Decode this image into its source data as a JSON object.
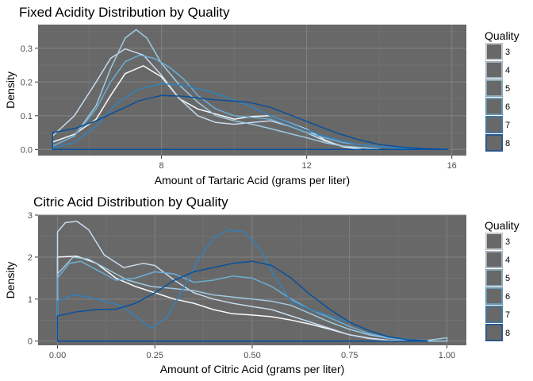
{
  "chart_data": [
    {
      "type": "line",
      "subtype": "density",
      "title": "Fixed Acidity Distribution by Quality",
      "xlabel": "Amount of Tartaric Acid (grams per liter)",
      "ylabel": "Density",
      "xlim": [
        4.6,
        16.4
      ],
      "ylim": [
        -0.018,
        0.37
      ],
      "xticks": [
        8,
        12,
        16
      ],
      "yticks": [
        0.0,
        0.1,
        0.2,
        0.3
      ],
      "ytick_labels": [
        "0.0",
        "0.1",
        "0.2",
        "0.3"
      ],
      "grid": true,
      "legend": {
        "title": "Quality",
        "position": "right"
      },
      "series": [
        {
          "name": "3",
          "color": "#f7fbff",
          "points": [
            [
              5.0,
              0.022
            ],
            [
              5.6,
              0.045
            ],
            [
              6.2,
              0.09
            ],
            [
              6.6,
              0.16
            ],
            [
              7.0,
              0.225
            ],
            [
              7.5,
              0.248
            ],
            [
              8.0,
              0.215
            ],
            [
              8.5,
              0.15
            ],
            [
              9.0,
              0.12
            ],
            [
              9.5,
              0.105
            ],
            [
              10.0,
              0.09
            ],
            [
              10.5,
              0.098
            ],
            [
              11.0,
              0.1
            ],
            [
              11.5,
              0.08
            ],
            [
              12.0,
              0.06
            ],
            [
              12.5,
              0.028
            ],
            [
              13.0,
              0.008
            ],
            [
              13.5,
              0.001
            ]
          ]
        },
        {
          "name": "4",
          "color": "#c6dbef",
          "points": [
            [
              5.0,
              0.04
            ],
            [
              5.6,
              0.1
            ],
            [
              6.2,
              0.2
            ],
            [
              6.6,
              0.27
            ],
            [
              7.0,
              0.298
            ],
            [
              7.5,
              0.28
            ],
            [
              8.0,
              0.22
            ],
            [
              8.5,
              0.15
            ],
            [
              9.0,
              0.1
            ],
            [
              9.5,
              0.08
            ],
            [
              10.0,
              0.075
            ],
            [
              10.5,
              0.08
            ],
            [
              11.0,
              0.085
            ],
            [
              11.5,
              0.07
            ],
            [
              12.0,
              0.05
            ],
            [
              12.5,
              0.025
            ],
            [
              13.0,
              0.01
            ],
            [
              14.0,
              0.001
            ]
          ]
        },
        {
          "name": "5",
          "color": "#9ecae1",
          "points": [
            [
              5.0,
              0.01
            ],
            [
              5.6,
              0.04
            ],
            [
              6.2,
              0.13
            ],
            [
              6.6,
              0.24
            ],
            [
              7.0,
              0.33
            ],
            [
              7.3,
              0.355
            ],
            [
              7.6,
              0.33
            ],
            [
              8.0,
              0.255
            ],
            [
              8.5,
              0.19
            ],
            [
              9.0,
              0.14
            ],
            [
              9.5,
              0.1
            ],
            [
              10.0,
              0.085
            ],
            [
              10.5,
              0.075
            ],
            [
              11.0,
              0.062
            ],
            [
              11.5,
              0.048
            ],
            [
              12.0,
              0.035
            ],
            [
              12.5,
              0.02
            ],
            [
              13.0,
              0.01
            ],
            [
              14.0,
              0.002
            ]
          ]
        },
        {
          "name": "6",
          "color": "#6baed6",
          "points": [
            [
              5.0,
              0.01
            ],
            [
              5.6,
              0.04
            ],
            [
              6.2,
              0.12
            ],
            [
              6.6,
              0.2
            ],
            [
              7.0,
              0.26
            ],
            [
              7.4,
              0.28
            ],
            [
              7.8,
              0.27
            ],
            [
              8.2,
              0.245
            ],
            [
              8.6,
              0.21
            ],
            [
              9.0,
              0.16
            ],
            [
              9.5,
              0.12
            ],
            [
              10.0,
              0.1
            ],
            [
              10.5,
              0.095
            ],
            [
              11.0,
              0.09
            ],
            [
              11.5,
              0.07
            ],
            [
              12.0,
              0.05
            ],
            [
              12.5,
              0.035
            ],
            [
              13.0,
              0.02
            ],
            [
              14.0,
              0.008
            ],
            [
              15.0,
              0.002
            ]
          ]
        },
        {
          "name": "7",
          "color": "#3182bd",
          "points": [
            [
              5.0,
              0.005
            ],
            [
              5.6,
              0.02
            ],
            [
              6.2,
              0.07
            ],
            [
              6.8,
              0.14
            ],
            [
              7.4,
              0.18
            ],
            [
              8.0,
              0.195
            ],
            [
              8.6,
              0.19
            ],
            [
              9.2,
              0.175
            ],
            [
              9.8,
              0.155
            ],
            [
              10.4,
              0.13
            ],
            [
              11.0,
              0.1
            ],
            [
              11.6,
              0.075
            ],
            [
              12.2,
              0.05
            ],
            [
              12.8,
              0.03
            ],
            [
              13.4,
              0.015
            ],
            [
              14.0,
              0.008
            ],
            [
              15.0,
              0.003
            ],
            [
              15.8,
              0.001
            ]
          ]
        },
        {
          "name": "8",
          "color": "#08519c",
          "points": [
            [
              5.0,
              0.05
            ],
            [
              5.6,
              0.062
            ],
            [
              6.2,
              0.085
            ],
            [
              6.8,
              0.115
            ],
            [
              7.4,
              0.145
            ],
            [
              8.0,
              0.16
            ],
            [
              8.6,
              0.158
            ],
            [
              9.2,
              0.15
            ],
            [
              9.8,
              0.145
            ],
            [
              10.4,
              0.14
            ],
            [
              11.0,
              0.125
            ],
            [
              11.6,
              0.1
            ],
            [
              12.2,
              0.075
            ],
            [
              12.8,
              0.05
            ],
            [
              13.4,
              0.03
            ],
            [
              14.0,
              0.015
            ],
            [
              14.6,
              0.007
            ],
            [
              15.2,
              0.003
            ],
            [
              15.9,
              0.0
            ]
          ]
        }
      ]
    },
    {
      "type": "line",
      "subtype": "density",
      "title": "Citric Acid Distribution by Quality",
      "xlabel": "Amount of Citric Acid (grams per liter)",
      "ylabel": "Density",
      "xlim": [
        -0.05,
        1.05
      ],
      "ylim": [
        -0.1,
        3.0
      ],
      "xticks": [
        0.0,
        0.25,
        0.5,
        0.75,
        1.0
      ],
      "xtick_labels": [
        "0.00",
        "0.25",
        "0.50",
        "0.75",
        "1.00"
      ],
      "yticks": [
        0,
        1,
        2,
        3
      ],
      "ytick_labels": [
        "0",
        "1",
        "2",
        "3"
      ],
      "grid": true,
      "legend": {
        "title": "Quality",
        "position": "right"
      },
      "series": [
        {
          "name": "3",
          "color": "#f7fbff",
          "points": [
            [
              0.0,
              2.0
            ],
            [
              0.05,
              2.02
            ],
            [
              0.1,
              1.85
            ],
            [
              0.15,
              1.5
            ],
            [
              0.2,
              1.3
            ],
            [
              0.25,
              1.15
            ],
            [
              0.3,
              1.0
            ],
            [
              0.35,
              0.9
            ],
            [
              0.4,
              0.75
            ],
            [
              0.45,
              0.65
            ],
            [
              0.5,
              0.62
            ],
            [
              0.55,
              0.58
            ],
            [
              0.6,
              0.5
            ],
            [
              0.65,
              0.4
            ],
            [
              0.7,
              0.28
            ],
            [
              0.75,
              0.15
            ],
            [
              0.8,
              0.07
            ],
            [
              0.85,
              0.02
            ],
            [
              0.9,
              0.005
            ]
          ]
        },
        {
          "name": "4",
          "color": "#c6dbef",
          "points": [
            [
              0.0,
              2.6
            ],
            [
              0.02,
              2.82
            ],
            [
              0.05,
              2.85
            ],
            [
              0.08,
              2.65
            ],
            [
              0.12,
              2.05
            ],
            [
              0.17,
              1.75
            ],
            [
              0.22,
              1.85
            ],
            [
              0.25,
              1.8
            ],
            [
              0.3,
              1.45
            ],
            [
              0.35,
              1.15
            ],
            [
              0.4,
              1.0
            ],
            [
              0.45,
              0.9
            ],
            [
              0.5,
              0.82
            ],
            [
              0.55,
              0.75
            ],
            [
              0.6,
              0.6
            ],
            [
              0.65,
              0.45
            ],
            [
              0.7,
              0.3
            ],
            [
              0.75,
              0.15
            ],
            [
              0.8,
              0.06
            ],
            [
              0.85,
              0.02
            ],
            [
              0.9,
              0.005
            ]
          ]
        },
        {
          "name": "5",
          "color": "#9ecae1",
          "points": [
            [
              0.0,
              1.6
            ],
            [
              0.04,
              2.0
            ],
            [
              0.08,
              1.95
            ],
            [
              0.12,
              1.75
            ],
            [
              0.18,
              1.45
            ],
            [
              0.24,
              1.3
            ],
            [
              0.3,
              1.25
            ],
            [
              0.35,
              1.2
            ],
            [
              0.4,
              1.1
            ],
            [
              0.45,
              1.05
            ],
            [
              0.5,
              1.0
            ],
            [
              0.55,
              0.95
            ],
            [
              0.6,
              0.85
            ],
            [
              0.65,
              0.65
            ],
            [
              0.7,
              0.45
            ],
            [
              0.75,
              0.28
            ],
            [
              0.8,
              0.15
            ],
            [
              0.85,
              0.07
            ],
            [
              0.9,
              0.03
            ],
            [
              0.95,
              0.02
            ],
            [
              1.0,
              0.08
            ]
          ]
        },
        {
          "name": "6",
          "color": "#6baed6",
          "points": [
            [
              0.0,
              1.5
            ],
            [
              0.03,
              1.85
            ],
            [
              0.06,
              1.9
            ],
            [
              0.1,
              1.7
            ],
            [
              0.15,
              1.45
            ],
            [
              0.2,
              1.5
            ],
            [
              0.25,
              1.65
            ],
            [
              0.3,
              1.6
            ],
            [
              0.35,
              1.4
            ],
            [
              0.4,
              1.45
            ],
            [
              0.45,
              1.55
            ],
            [
              0.5,
              1.5
            ],
            [
              0.55,
              1.3
            ],
            [
              0.6,
              1.0
            ],
            [
              0.65,
              0.75
            ],
            [
              0.7,
              0.55
            ],
            [
              0.75,
              0.35
            ],
            [
              0.8,
              0.18
            ],
            [
              0.85,
              0.08
            ],
            [
              0.9,
              0.03
            ],
            [
              0.95,
              0.01
            ]
          ]
        },
        {
          "name": "7",
          "color": "#3182bd",
          "points": [
            [
              0.0,
              0.95
            ],
            [
              0.04,
              1.1
            ],
            [
              0.08,
              1.05
            ],
            [
              0.12,
              0.95
            ],
            [
              0.16,
              0.85
            ],
            [
              0.2,
              0.6
            ],
            [
              0.24,
              0.3
            ],
            [
              0.28,
              0.55
            ],
            [
              0.32,
              1.2
            ],
            [
              0.36,
              1.9
            ],
            [
              0.4,
              2.45
            ],
            [
              0.44,
              2.65
            ],
            [
              0.48,
              2.6
            ],
            [
              0.52,
              2.2
            ],
            [
              0.56,
              1.5
            ],
            [
              0.6,
              0.95
            ],
            [
              0.65,
              0.75
            ],
            [
              0.7,
              0.6
            ],
            [
              0.75,
              0.45
            ],
            [
              0.8,
              0.25
            ],
            [
              0.85,
              0.1
            ],
            [
              0.9,
              0.04
            ],
            [
              0.95,
              0.01
            ]
          ]
        },
        {
          "name": "8",
          "color": "#08519c",
          "points": [
            [
              0.0,
              0.6
            ],
            [
              0.05,
              0.7
            ],
            [
              0.1,
              0.75
            ],
            [
              0.15,
              0.76
            ],
            [
              0.2,
              0.9
            ],
            [
              0.25,
              1.15
            ],
            [
              0.3,
              1.45
            ],
            [
              0.35,
              1.65
            ],
            [
              0.4,
              1.75
            ],
            [
              0.45,
              1.85
            ],
            [
              0.5,
              1.9
            ],
            [
              0.55,
              1.8
            ],
            [
              0.6,
              1.5
            ],
            [
              0.65,
              1.1
            ],
            [
              0.7,
              0.75
            ],
            [
              0.75,
              0.45
            ],
            [
              0.8,
              0.25
            ],
            [
              0.85,
              0.1
            ],
            [
              0.9,
              0.03
            ],
            [
              0.95,
              0.005
            ]
          ]
        }
      ]
    }
  ]
}
